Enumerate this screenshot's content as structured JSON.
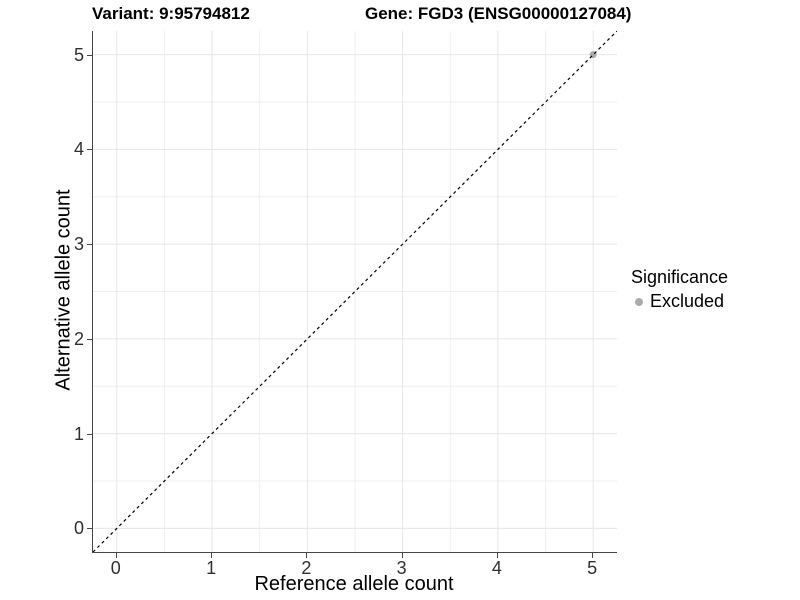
{
  "titles": {
    "variant": "Variant: 9:95794812",
    "gene": "Gene: FGD3 (ENSG00000127084)"
  },
  "legend": {
    "title": "Significance",
    "items": [
      {
        "label": "Excluded",
        "color": "#ABABAB"
      }
    ]
  },
  "chart_data": {
    "type": "scatter",
    "title": "Variant: 9:95794812    Gene: FGD3 (ENSG00000127084)",
    "xlabel": "Reference allele count",
    "ylabel": "Alternative allele count",
    "xlim": [
      -0.25,
      5.25
    ],
    "ylim": [
      -0.25,
      5.25
    ],
    "xticks": [
      0,
      1,
      2,
      3,
      4,
      5
    ],
    "yticks": [
      0,
      1,
      2,
      3,
      4,
      5
    ],
    "xticks_minor": [
      0.5,
      1.5,
      2.5,
      3.5,
      4.5
    ],
    "yticks_minor": [
      0.5,
      1.5,
      2.5,
      3.5,
      4.5
    ],
    "grid": "major+minor",
    "legend_position": "right",
    "series": [
      {
        "name": "Excluded",
        "color": "#ABABAB",
        "marker": "circle",
        "points": [
          {
            "x": 5,
            "y": 5
          }
        ]
      }
    ],
    "reference_line": {
      "kind": "identity",
      "equation": "y = x",
      "style": "dashed",
      "color": "#000000"
    },
    "style": {
      "grid_major_color": "#E6E6E6",
      "grid_minor_color": "#EFEFEF",
      "axis_color": "#464646"
    }
  }
}
